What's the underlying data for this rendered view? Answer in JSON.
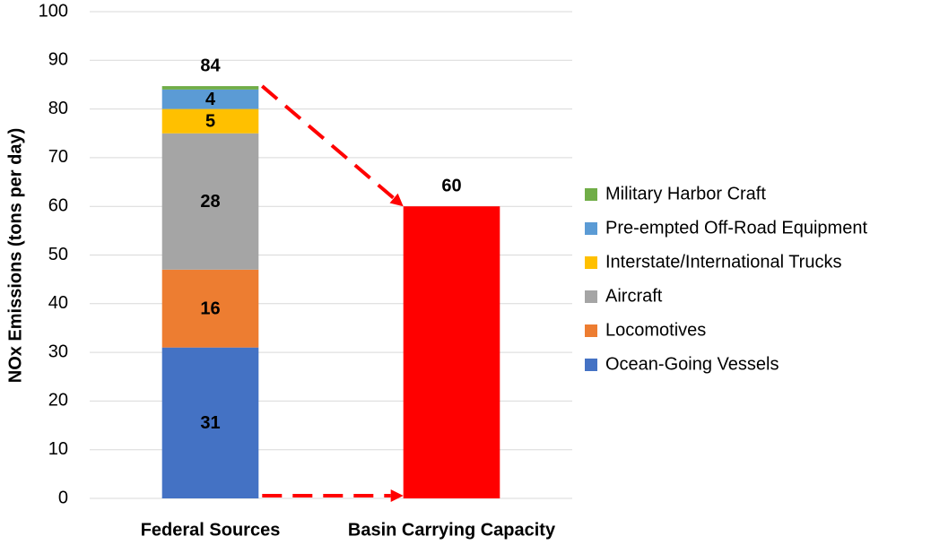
{
  "chart_data": {
    "type": "stacked_bar",
    "ylabel": "NOx Emissions (tons per day)",
    "categories": [
      "Federal Sources",
      "Basin Carrying Capacity"
    ],
    "series": [
      {
        "name": "Ocean-Going Vessels",
        "color": "#4472c4",
        "values": [
          31,
          null
        ]
      },
      {
        "name": "Locomotives",
        "color": "#ed7d31",
        "values": [
          16,
          null
        ]
      },
      {
        "name": "Aircraft",
        "color": "#a5a5a5",
        "values": [
          28,
          null
        ]
      },
      {
        "name": "Interstate/International Trucks",
        "color": "#ffc000",
        "values": [
          5,
          null
        ]
      },
      {
        "name": "Pre-empted Off-Road Equipment",
        "color": "#5b9bd5",
        "values": [
          4,
          null
        ]
      },
      {
        "name": "Military Harbor Craft",
        "color": "#70ad47",
        "values": [
          0.7,
          null
        ],
        "labels": false
      }
    ],
    "totals": [
      84,
      null
    ],
    "capacity_values": [
      null,
      60
    ],
    "capacity_color": "#ff0000",
    "ylim": [
      0,
      100
    ],
    "yticks": [
      0,
      10,
      20,
      30,
      40,
      50,
      60,
      70,
      80,
      90,
      100
    ],
    "grid": true,
    "legend": "right"
  }
}
